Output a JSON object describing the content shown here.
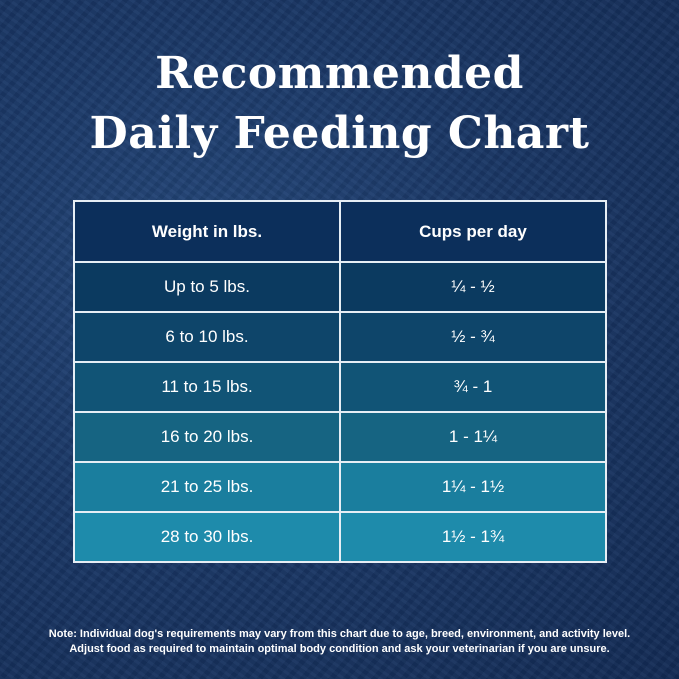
{
  "title_line1": "Recommended",
  "title_line2": "Daily Feeding Chart",
  "table": {
    "headers": [
      "Weight in lbs.",
      "Cups per day"
    ],
    "rows": [
      {
        "weight": "Up to 5 lbs.",
        "cups": "¼ - ½",
        "color": "#0b3a60"
      },
      {
        "weight": "6 to 10 lbs.",
        "cups": "½ - ¾",
        "color": "#0e456a"
      },
      {
        "weight": "11 to 15 lbs.",
        "cups": "¾ - 1",
        "color": "#115476"
      },
      {
        "weight": "16 to 20 lbs.",
        "cups": "1 - 1¼",
        "color": "#166482"
      },
      {
        "weight": "21 to 25 lbs.",
        "cups": "1¼ - 1½",
        "color": "#1a7e9e"
      },
      {
        "weight": "28 to 30 lbs.",
        "cups": "1½ - 1¾",
        "color": "#1e8bab"
      }
    ]
  },
  "note_line1": "Note: Individual dog's requirements may vary from this chart due to age, breed, environment, and activity level.",
  "note_line2": "Adjust food as required to maintain optimal body condition and ask your veterinarian if you are unsure."
}
